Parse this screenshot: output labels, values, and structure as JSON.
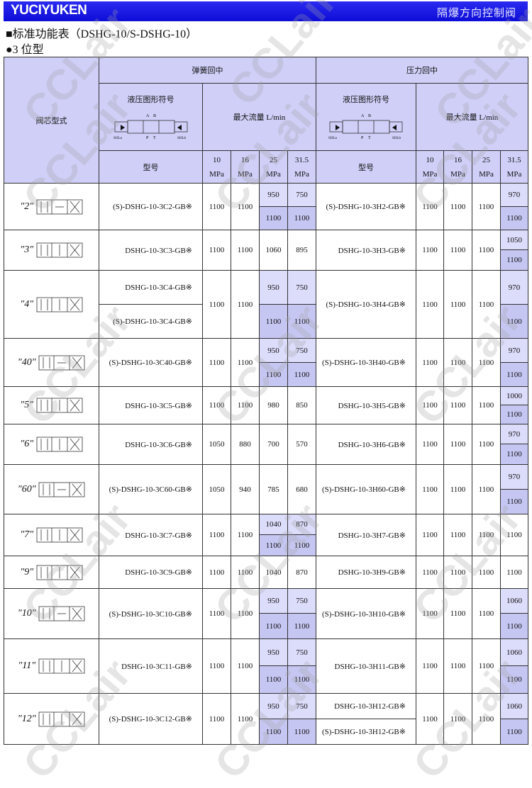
{
  "header": {
    "logo": "YUCIYUKEN",
    "title": "隔爆方向控制阀"
  },
  "section_title": "■标准功能表（DSHG-10/S-DSHG-10）",
  "subsection_title": "●3 位型",
  "watermark": "CCLair",
  "colors": {
    "bar": "#1414e0",
    "header_cell": "#cfcff8",
    "shade_light": "#dcdcfb",
    "shade_dark": "#c6c6f3"
  },
  "table": {
    "col_spool": "阀芯型式",
    "spring": "弹簧回中",
    "pressure": "压力回中",
    "symbol": "液压图形符号",
    "max_flow": "最大流量 L/min",
    "model": "型号",
    "pressures": [
      [
        "10",
        "MPa"
      ],
      [
        "16",
        "MPa"
      ],
      [
        "25",
        "MPa"
      ],
      [
        "31.5",
        "MPa"
      ]
    ],
    "symbol_labels": {
      "a": "A",
      "b": "B",
      "p": "P",
      "t": "T",
      "sola": "SOLa",
      "solb": "SOLb"
    },
    "rows": [
      {
        "code": "″2″",
        "spring": {
          "models": [
            "(S)-DSHG-10-3C2-GB※"
          ],
          "f10": "1100",
          "f16": "1100",
          "f25": [
            "950",
            "1100"
          ],
          "f31": [
            "750",
            "1100"
          ]
        },
        "pressure": {
          "models": [
            "(S)-DSHG-10-3H2-GB※"
          ],
          "f10": "1100",
          "f16": "1100",
          "f25": [
            "1100"
          ],
          "f31": [
            "970",
            "1100"
          ]
        }
      },
      {
        "code": "″3″",
        "spring": {
          "models": [
            "DSHG-10-3C3-GB※"
          ],
          "f10": "1100",
          "f16": "1100",
          "f25": [
            "1060"
          ],
          "f31": [
            "895"
          ]
        },
        "pressure": {
          "models": [
            "DSHG-10-3H3-GB※"
          ],
          "f10": "1100",
          "f16": "1100",
          "f25": [
            "1100"
          ],
          "f31": [
            "1050",
            "1100"
          ]
        }
      },
      {
        "code": "″4″",
        "spring": {
          "models": [
            "DSHG-10-3C4-GB※",
            "(S)-DSHG-10-3C4-GB※"
          ],
          "f10": "1100",
          "f16": "1100",
          "f25": [
            "950",
            "1100"
          ],
          "f31": [
            "750",
            "1100"
          ]
        },
        "pressure": {
          "models": [
            "(S)-DSHG-10-3H4-GB※"
          ],
          "f10": "1100",
          "f16": "1100",
          "f25": [
            "1100"
          ],
          "f31": [
            "970",
            "1100"
          ]
        }
      },
      {
        "code": "″40″",
        "spring": {
          "models": [
            "(S)-DSHG-10-3C40-GB※"
          ],
          "f10": "1100",
          "f16": "1100",
          "f25": [
            "950",
            "1100"
          ],
          "f31": [
            "750",
            "1100"
          ]
        },
        "pressure": {
          "models": [
            "(S)-DSHG-10-3H40-GB※"
          ],
          "f10": "1100",
          "f16": "1100",
          "f25": [
            "1100"
          ],
          "f31": [
            "970",
            "1100"
          ]
        }
      },
      {
        "code": "″5″",
        "spring": {
          "models": [
            "DSHG-10-3C5-GB※"
          ],
          "f10": "1100",
          "f16": "1100",
          "f25": [
            "980"
          ],
          "f31": [
            "850"
          ]
        },
        "pressure": {
          "models": [
            "DSHG-10-3H5-GB※"
          ],
          "f10": "1100",
          "f16": "1100",
          "f25": [
            "1100"
          ],
          "f31": [
            "1000",
            "1100"
          ]
        }
      },
      {
        "code": "″6″",
        "spring": {
          "models": [
            "DSHG-10-3C6-GB※"
          ],
          "f10": "1050",
          "f16": "880",
          "f25": [
            "700"
          ],
          "f31": [
            "570"
          ]
        },
        "pressure": {
          "models": [
            "DSHG-10-3H6-GB※"
          ],
          "f10": "1100",
          "f16": "1100",
          "f25": [
            "1100"
          ],
          "f31": [
            "970",
            "1100"
          ]
        }
      },
      {
        "code": "″60″",
        "spring": {
          "models": [
            "(S)-DSHG-10-3C60-GB※"
          ],
          "f10": "1050",
          "f16": "940",
          "f25": [
            "785"
          ],
          "f31": [
            "680"
          ]
        },
        "pressure": {
          "models": [
            "(S)-DSHG-10-3H60-GB※"
          ],
          "f10": "1100",
          "f16": "1100",
          "f25": [
            "1100"
          ],
          "f31": [
            "970",
            "1100"
          ]
        }
      },
      {
        "code": "″7″",
        "spring": {
          "models": [
            "DSHG-10-3C7-GB※"
          ],
          "f10": "1100",
          "f16": "1100",
          "f25": [
            "1040",
            "1100"
          ],
          "f31": [
            "870",
            "1100"
          ]
        },
        "pressure": {
          "models": [
            "DSHG-10-3H7-GB※"
          ],
          "f10": "1100",
          "f16": "1100",
          "f25": [
            "1100"
          ],
          "f31": [
            "1100"
          ]
        }
      },
      {
        "code": "″9″",
        "spring": {
          "models": [
            "DSHG-10-3C9-GB※"
          ],
          "f10": "1100",
          "f16": "1100",
          "f25": [
            "1040"
          ],
          "f31": [
            "870"
          ]
        },
        "pressure": {
          "models": [
            "DSHG-10-3H9-GB※"
          ],
          "f10": "1100",
          "f16": "1100",
          "f25": [
            "1100"
          ],
          "f31": [
            "1100"
          ]
        }
      },
      {
        "code": "″10″",
        "spring": {
          "models": [
            "(S)-DSHG-10-3C10-GB※"
          ],
          "f10": "1100",
          "f16": "1100",
          "f25": [
            "950",
            "1100"
          ],
          "f31": [
            "750",
            "1100"
          ]
        },
        "pressure": {
          "models": [
            "(S)-DSHG-10-3H10-GB※"
          ],
          "f10": "1100",
          "f16": "1100",
          "f25": [
            "1100"
          ],
          "f31": [
            "1060",
            "1100"
          ]
        }
      },
      {
        "code": "″11″",
        "spring": {
          "models": [
            "DSHG-10-3C11-GB※"
          ],
          "f10": "1100",
          "f16": "1100",
          "f25": [
            "950",
            "1100"
          ],
          "f31": [
            "750",
            "1100"
          ]
        },
        "pressure": {
          "models": [
            "DSHG-10-3H11-GB※"
          ],
          "f10": "1100",
          "f16": "1100",
          "f25": [
            "1100"
          ],
          "f31": [
            "1060",
            "1100"
          ]
        }
      },
      {
        "code": "″12″",
        "spring": {
          "models": [
            "(S)-DSHG-10-3C12-GB※"
          ],
          "f10": "1100",
          "f16": "1100",
          "f25": [
            "950",
            "1100"
          ],
          "f31": [
            "750",
            "1100"
          ]
        },
        "pressure": {
          "models": [
            "DSHG-10-3H12-GB※",
            "(S)-DSHG-10-3H12-GB※"
          ],
          "f10": "1100",
          "f16": "1100",
          "f25": [
            "1100"
          ],
          "f31": [
            "1060",
            "1100"
          ]
        }
      }
    ]
  }
}
